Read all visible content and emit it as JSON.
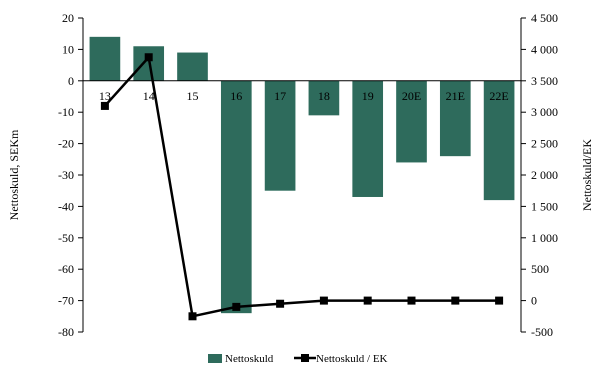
{
  "chart_data": {
    "type": "bar+line",
    "categories": [
      "13",
      "14",
      "15",
      "16",
      "17",
      "18",
      "19",
      "20E",
      "21E",
      "22E"
    ],
    "series": [
      {
        "name": "Nettoskuld",
        "type": "bar",
        "axis": "left",
        "values": [
          14,
          11,
          9,
          -74,
          -35,
          -11,
          -37,
          -26,
          -24,
          -38
        ],
        "color": "#2e6b5c"
      },
      {
        "name": "Nettoskuld / EK",
        "type": "line",
        "axis": "right",
        "values": [
          3100,
          3875,
          -250,
          -100,
          -50,
          0,
          0,
          0,
          0,
          0
        ],
        "color": "#000000",
        "marker": "square"
      }
    ],
    "ylabel": "Nettoskuld, SEKm",
    "y2label": "Nettoskuld/EK",
    "ylim": [
      -80,
      20
    ],
    "y2lim": [
      -500,
      4500
    ],
    "yticks": [
      20,
      10,
      0,
      -10,
      -20,
      -30,
      -40,
      -50,
      -60,
      -70,
      -80
    ],
    "y2ticks": [
      "4 500",
      "4 000",
      "3 500",
      "3 000",
      "2 500",
      "2 000",
      "1 500",
      "1 000",
      "500",
      "0",
      "-500"
    ],
    "y2tick_values": [
      4500,
      4000,
      3500,
      3000,
      2500,
      2000,
      1500,
      1000,
      500,
      0,
      -500
    ],
    "legend_position": "bottom-center",
    "grid": false
  }
}
